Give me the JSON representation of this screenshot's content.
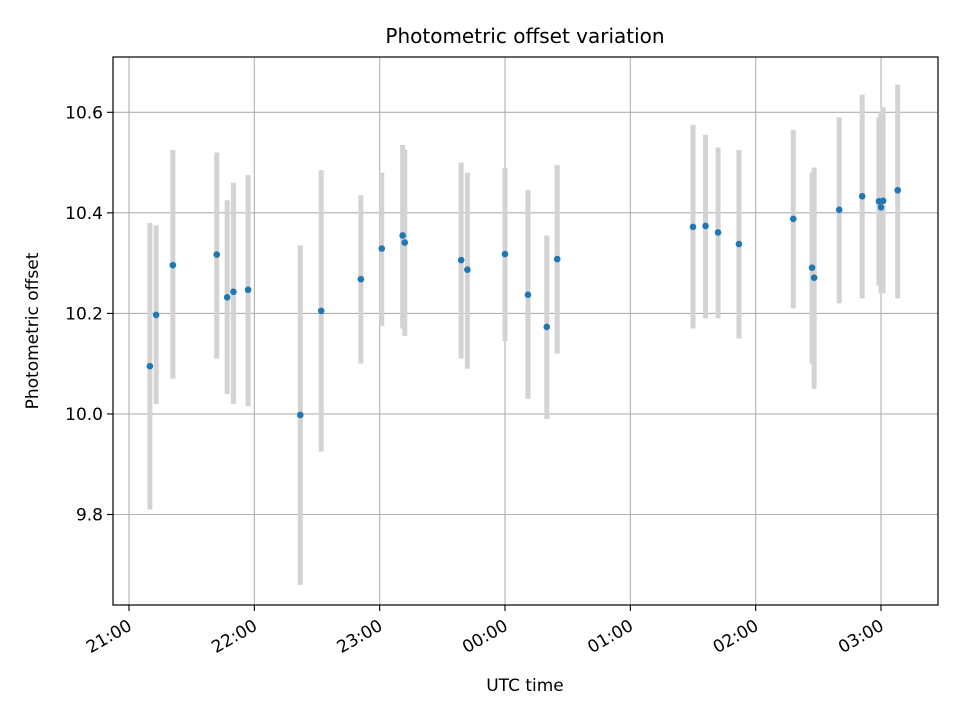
{
  "chart_data": {
    "type": "scatter",
    "title": "Photometric offset variation",
    "xlabel": "UTC time",
    "ylabel": "Photometric offset",
    "x_ticks": [
      "21:00",
      "22:00",
      "23:00",
      "00:00",
      "01:00",
      "02:00",
      "03:00"
    ],
    "y_ticks": [
      "9.8",
      "10.0",
      "10.2",
      "10.4",
      "10.6"
    ],
    "y_tick_values": [
      9.8,
      10.0,
      10.2,
      10.4,
      10.6
    ],
    "xlim": [
      "21:00",
      "03:30"
    ],
    "ylim": [
      9.62,
      10.71
    ],
    "grid": true,
    "point_color": "#1f77b4",
    "errorbar_color": "#d3d3d3",
    "points": [
      {
        "x": "21:10",
        "y": 10.095,
        "err_low": 9.81,
        "err_high": 10.38
      },
      {
        "x": "21:13",
        "y": 10.197,
        "err_low": 10.02,
        "err_high": 10.375
      },
      {
        "x": "21:21",
        "y": 10.296,
        "err_low": 10.07,
        "err_high": 10.525
      },
      {
        "x": "21:42",
        "y": 10.317,
        "err_low": 10.11,
        "err_high": 10.52
      },
      {
        "x": "21:47",
        "y": 10.232,
        "err_low": 10.04,
        "err_high": 10.425
      },
      {
        "x": "21:50",
        "y": 10.243,
        "err_low": 10.02,
        "err_high": 10.46
      },
      {
        "x": "21:57",
        "y": 10.247,
        "err_low": 10.015,
        "err_high": 10.475
      },
      {
        "x": "22:22",
        "y": 9.998,
        "err_low": 9.66,
        "err_high": 10.335
      },
      {
        "x": "22:32",
        "y": 10.205,
        "err_low": 9.925,
        "err_high": 10.485
      },
      {
        "x": "22:51",
        "y": 10.268,
        "err_low": 10.1,
        "err_high": 10.435
      },
      {
        "x": "23:01",
        "y": 10.329,
        "err_low": 10.175,
        "err_high": 10.48
      },
      {
        "x": "23:11",
        "y": 10.355,
        "err_low": 10.17,
        "err_high": 10.535
      },
      {
        "x": "23:12",
        "y": 10.341,
        "err_low": 10.155,
        "err_high": 10.525
      },
      {
        "x": "23:39",
        "y": 10.306,
        "err_low": 10.11,
        "err_high": 10.5
      },
      {
        "x": "23:42",
        "y": 10.287,
        "err_low": 10.09,
        "err_high": 10.48
      },
      {
        "x": "00:00",
        "y": 10.318,
        "err_low": 10.145,
        "err_high": 10.49
      },
      {
        "x": "00:11",
        "y": 10.237,
        "err_low": 10.03,
        "err_high": 10.445
      },
      {
        "x": "00:20",
        "y": 10.173,
        "err_low": 9.99,
        "err_high": 10.355
      },
      {
        "x": "00:25",
        "y": 10.308,
        "err_low": 10.12,
        "err_high": 10.495
      },
      {
        "x": "01:30",
        "y": 10.372,
        "err_low": 10.17,
        "err_high": 10.575
      },
      {
        "x": "01:36",
        "y": 10.374,
        "err_low": 10.19,
        "err_high": 10.555
      },
      {
        "x": "01:42",
        "y": 10.361,
        "err_low": 10.19,
        "err_high": 10.53
      },
      {
        "x": "01:52",
        "y": 10.338,
        "err_low": 10.15,
        "err_high": 10.525
      },
      {
        "x": "02:18",
        "y": 10.388,
        "err_low": 10.21,
        "err_high": 10.565
      },
      {
        "x": "02:27",
        "y": 10.291,
        "err_low": 10.1,
        "err_high": 10.48
      },
      {
        "x": "02:28",
        "y": 10.271,
        "err_low": 10.05,
        "err_high": 10.49
      },
      {
        "x": "02:40",
        "y": 10.406,
        "err_low": 10.22,
        "err_high": 10.59
      },
      {
        "x": "02:51",
        "y": 10.433,
        "err_low": 10.23,
        "err_high": 10.635
      },
      {
        "x": "02:59",
        "y": 10.423,
        "err_low": 10.255,
        "err_high": 10.59
      },
      {
        "x": "03:00",
        "y": 10.411,
        "err_low": 10.24,
        "err_high": 10.6
      },
      {
        "x": "03:01",
        "y": 10.424,
        "err_low": 10.24,
        "err_high": 10.61
      },
      {
        "x": "03:08",
        "y": 10.445,
        "err_low": 10.23,
        "err_high": 10.655
      }
    ]
  }
}
